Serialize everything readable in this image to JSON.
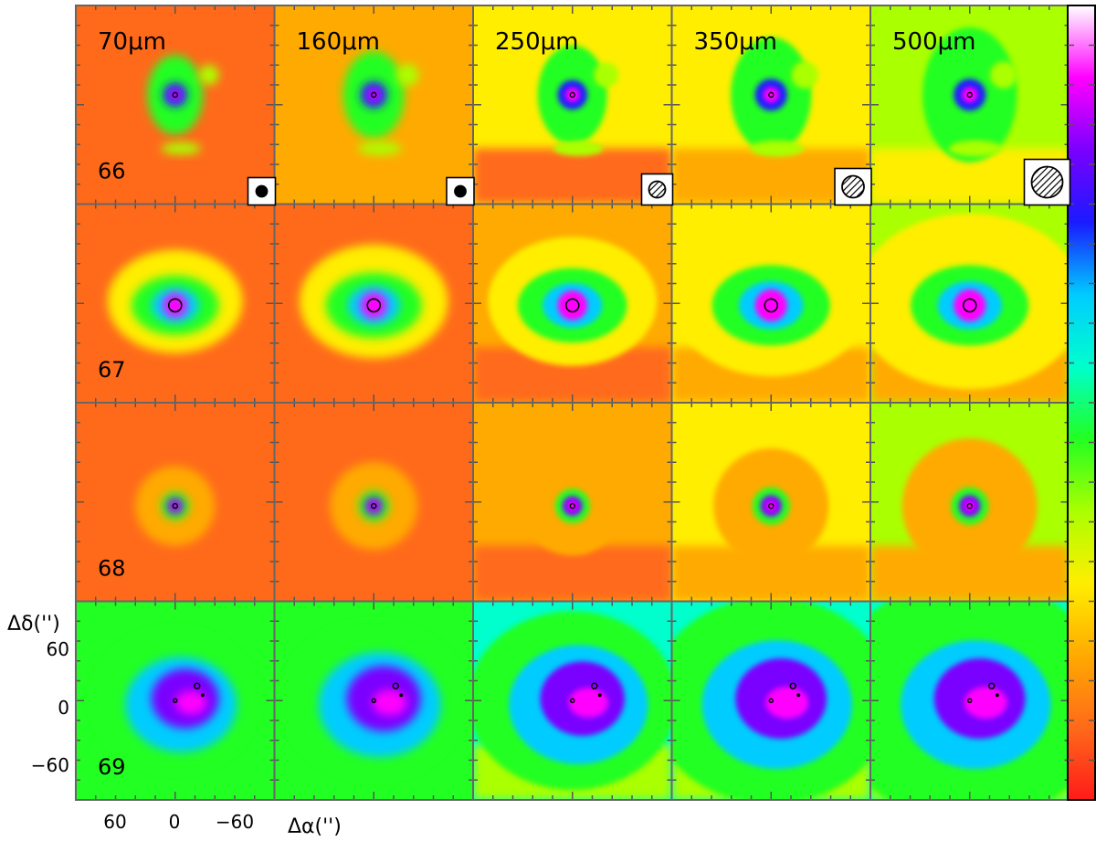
{
  "figure": {
    "wavelengths": [
      "70μm",
      "160μm",
      "250μm",
      "350μm",
      "500μm"
    ],
    "sources": [
      "66",
      "67",
      "68",
      "69"
    ],
    "y_axis_label": "Δδ('')",
    "x_axis_label": "Δα('')",
    "y_tick_labels": [
      "60",
      "0",
      "−60"
    ],
    "x_tick_labels": [
      "60",
      "0",
      "−60"
    ],
    "colorbar": "rainbow scale (red low → magenta high), no printed tick values",
    "colormap": [
      "#ff1a1a",
      "#ff6a1a",
      "#ffaa00",
      "#ffee00",
      "#aaff00",
      "#22ff22",
      "#00ffcc",
      "#00ccff",
      "#1a1aff",
      "#7a00ff",
      "#ff00ff",
      "#ffffff"
    ],
    "beam_markers": "beam-size circles shown in row 66 for each band (filled at 70 and 160 μm, hatched at 250, 350, 500 μm)"
  }
}
